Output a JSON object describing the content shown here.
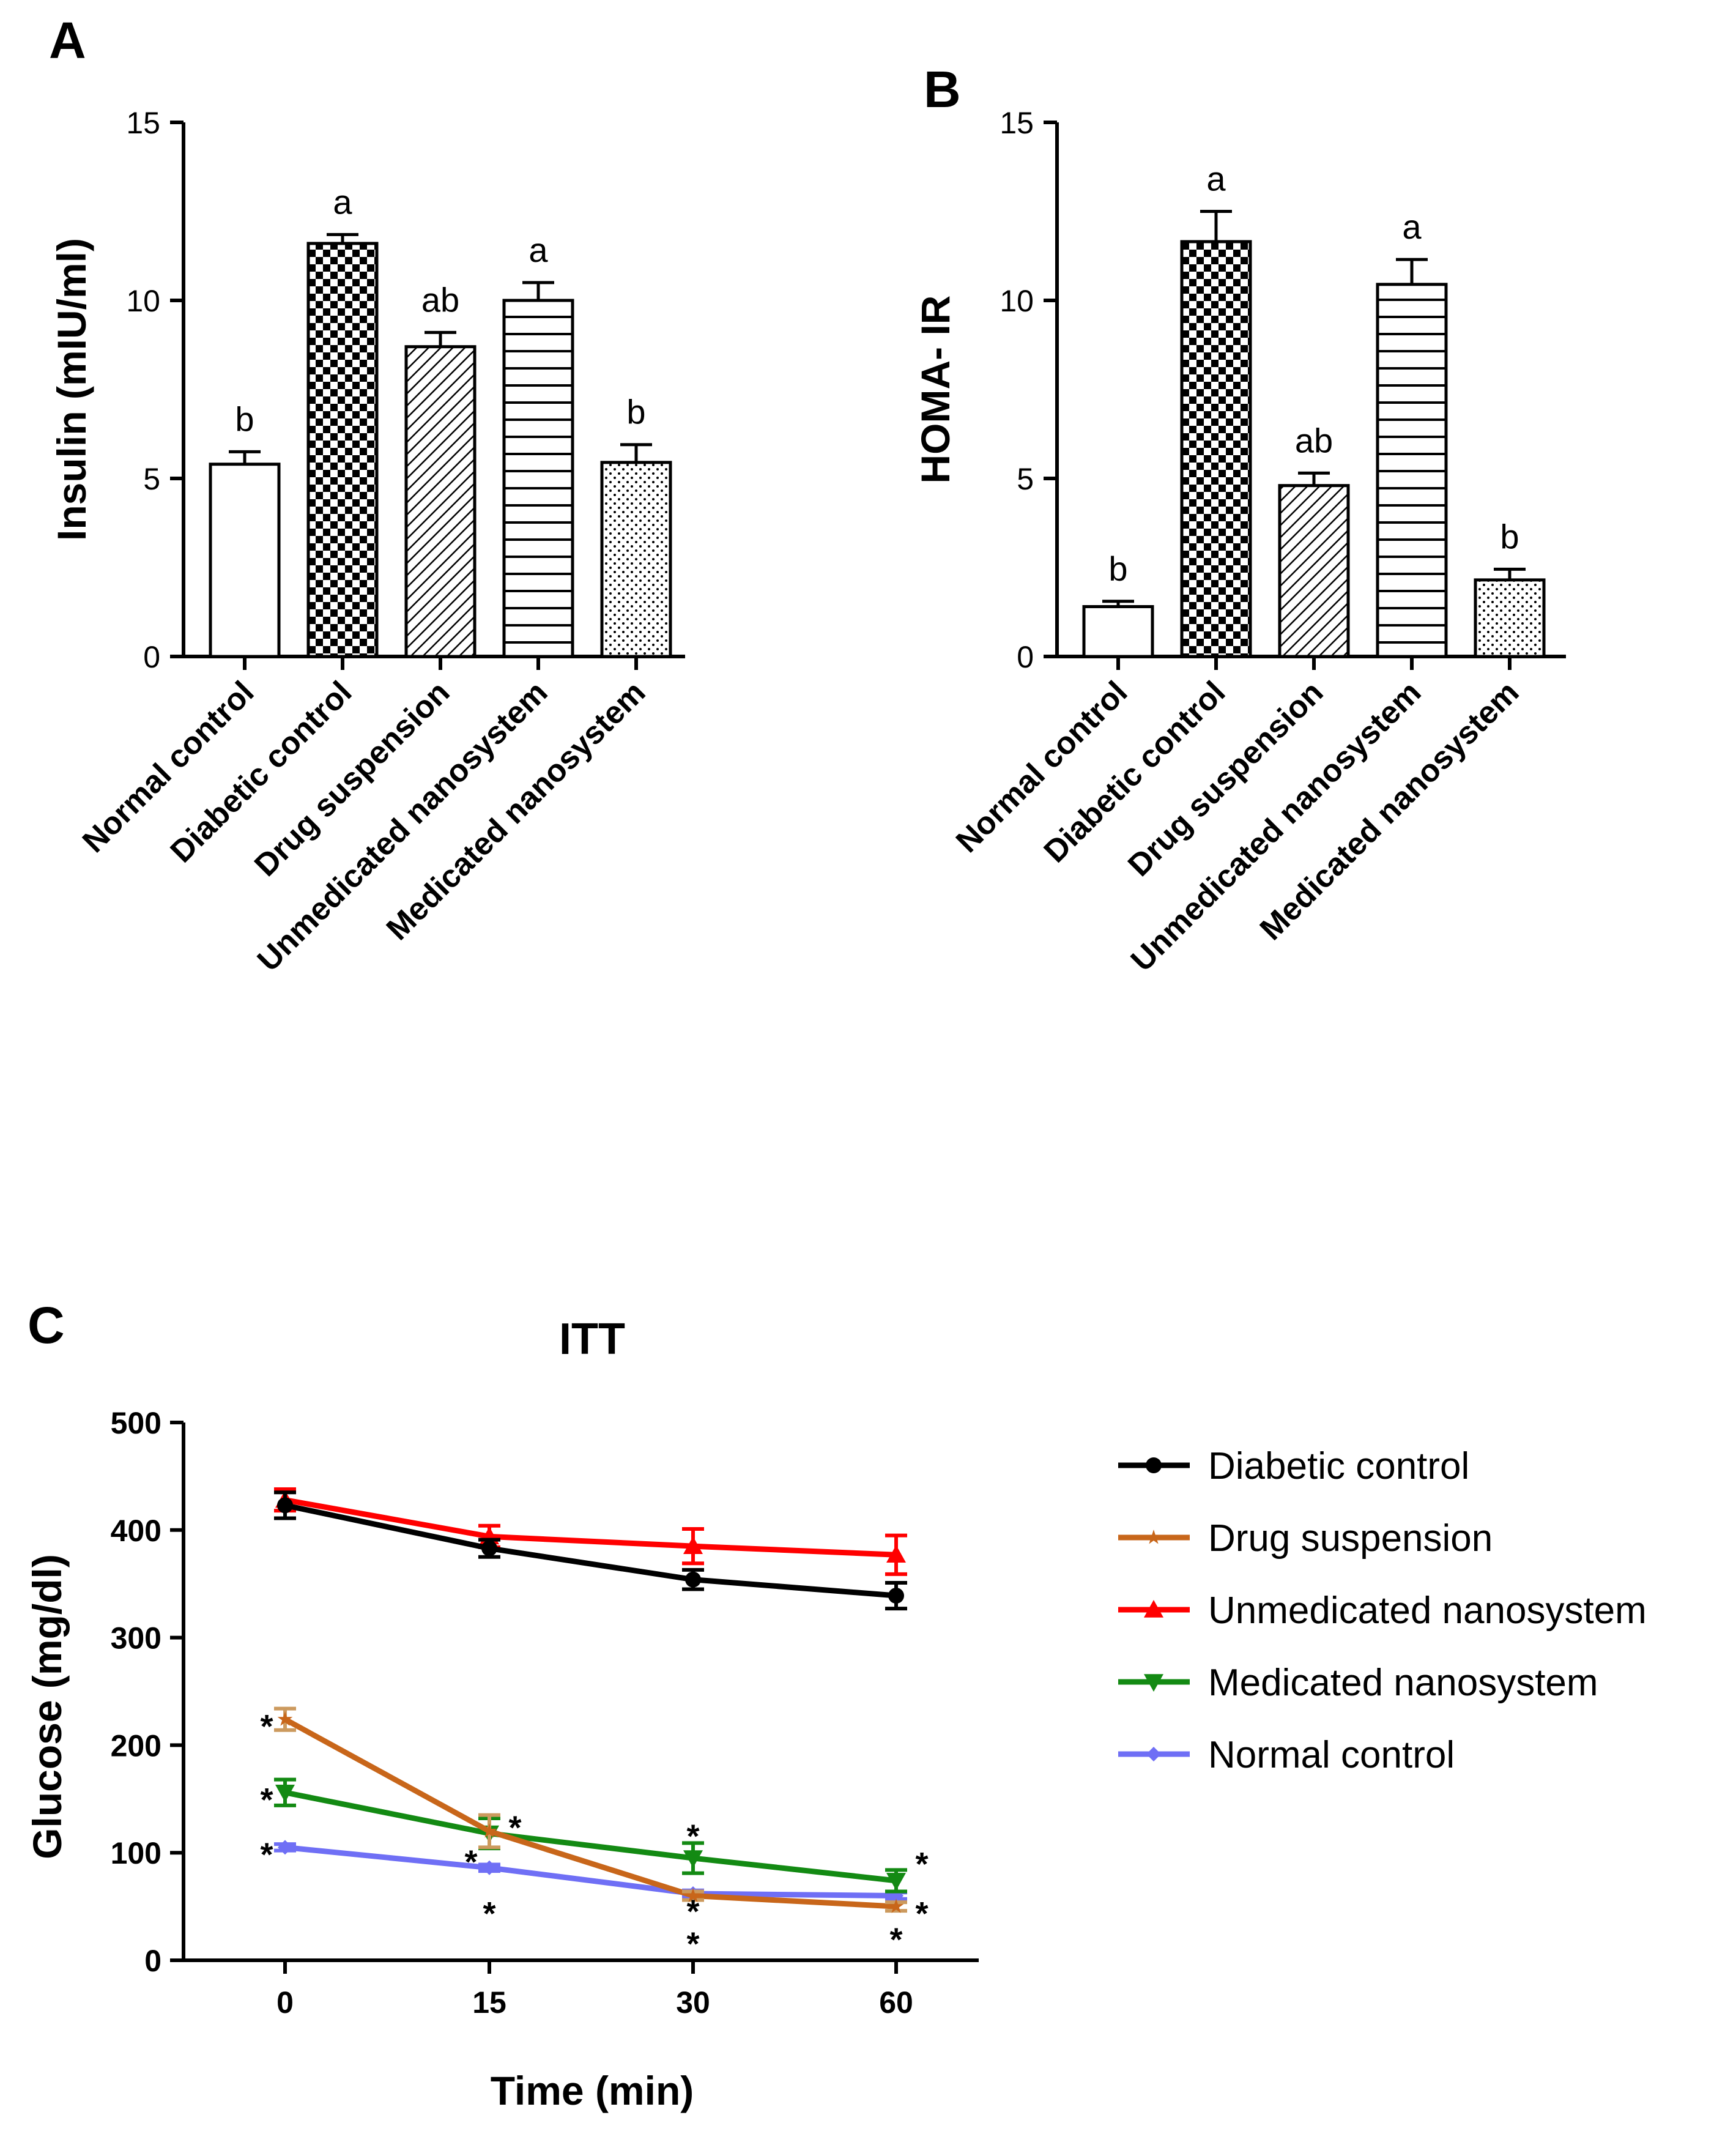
{
  "panels": {
    "a": "A",
    "b": "B",
    "c": "C"
  },
  "chart_data": [
    {
      "type": "bar",
      "panel": "A",
      "ylabel": "Insulin (mIU/ml)",
      "ylim": [
        0,
        15
      ],
      "yticks": [
        0,
        5,
        10,
        15
      ],
      "categories": [
        "Normal control",
        "Diabetic control",
        "Drug suspension",
        "Unmedicated nanosystem",
        "Medicated nanosystem"
      ],
      "values": [
        5.4,
        11.6,
        8.7,
        10.0,
        5.45
      ],
      "errors": [
        0.35,
        0.25,
        0.4,
        0.5,
        0.5
      ],
      "significance": [
        "b",
        "a",
        "ab",
        "a",
        "b"
      ],
      "patterns": [
        "none",
        "checker",
        "diagonal",
        "horizontal",
        "dots"
      ]
    },
    {
      "type": "bar",
      "panel": "B",
      "ylabel": "HOMA- IR",
      "ylim": [
        0,
        15
      ],
      "yticks": [
        0,
        5,
        10,
        15
      ],
      "categories": [
        "Normal control",
        "Diabetic control",
        "Drug suspension",
        "Unmedicated nanosystem",
        "Medicated nanosystem"
      ],
      "values": [
        1.4,
        11.65,
        4.8,
        10.45,
        2.15
      ],
      "errors": [
        0.15,
        0.85,
        0.35,
        0.7,
        0.3
      ],
      "significance": [
        "b",
        "a",
        "ab",
        "a",
        "b"
      ],
      "patterns": [
        "none",
        "checker",
        "diagonal",
        "horizontal",
        "dots"
      ]
    },
    {
      "type": "line",
      "panel": "C",
      "title": "ITT",
      "xlabel": "Time (min)",
      "ylabel": "Glucose (mg/dl)",
      "x": [
        0,
        15,
        30,
        60
      ],
      "ylim": [
        0,
        500
      ],
      "yticks": [
        0,
        100,
        200,
        300,
        400,
        500
      ],
      "legend_position": "right",
      "series": [
        {
          "name": "Diabetic control",
          "color": "#000000",
          "marker": "circle",
          "values": [
            423,
            383,
            354,
            339
          ],
          "errors": [
            12,
            8,
            9,
            12
          ]
        },
        {
          "name": "Drug suspension",
          "color": "#c8661a",
          "errcolor": "#cc9a5e",
          "marker": "star",
          "values": [
            224,
            120,
            60,
            50
          ],
          "errors": [
            10,
            15,
            4,
            4
          ]
        },
        {
          "name": "Unmedicated nanosystem",
          "color": "#ff0000",
          "marker": "triangle-up",
          "values": [
            428,
            394,
            385,
            377
          ],
          "errors": [
            10,
            10,
            16,
            18
          ]
        },
        {
          "name": "Medicated nanosystem",
          "color": "#138a13",
          "marker": "triangle-down",
          "values": [
            156,
            118,
            95,
            74
          ],
          "errors": [
            12,
            14,
            14,
            10
          ]
        },
        {
          "name": "Normal control",
          "color": "#6f6ff5",
          "marker": "diamond",
          "values": [
            105,
            86,
            62,
            60
          ],
          "errors": [
            3,
            3,
            3,
            3
          ]
        }
      ],
      "annotations": {
        "label": "*",
        "points": [
          {
            "x": 0,
            "y": 224,
            "side": "left"
          },
          {
            "x": 0,
            "y": 156,
            "side": "left"
          },
          {
            "x": 0,
            "y": 105,
            "side": "left"
          },
          {
            "x": 15,
            "y": 130,
            "side": "right"
          },
          {
            "x": 15,
            "y": 98,
            "side": "left"
          },
          {
            "x": 15,
            "y": 50,
            "side": "center"
          },
          {
            "x": 30,
            "y": 122,
            "side": "center"
          },
          {
            "x": 30,
            "y": 52,
            "side": "center"
          },
          {
            "x": 30,
            "y": 22,
            "side": "center"
          },
          {
            "x": 60,
            "y": 96,
            "side": "right"
          },
          {
            "x": 60,
            "y": 50,
            "side": "right"
          },
          {
            "x": 60,
            "y": 26,
            "side": "center"
          }
        ]
      }
    }
  ]
}
